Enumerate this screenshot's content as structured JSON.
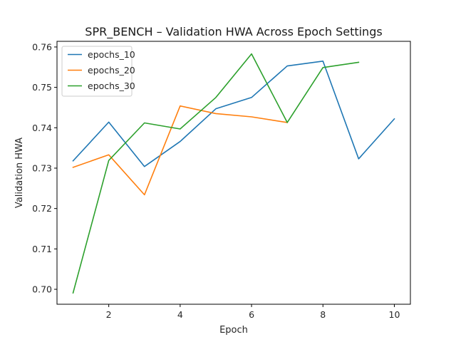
{
  "chart_data": {
    "type": "line",
    "title": "SPR_BENCH – Validation HWA Across Epoch Settings",
    "xlabel": "Epoch",
    "ylabel": "Validation HWA",
    "xlim": [
      0.55,
      10.45
    ],
    "ylim": [
      0.6963,
      0.7614
    ],
    "xticks": [
      2,
      4,
      6,
      8,
      10
    ],
    "yticks": [
      0.7,
      0.71,
      0.72,
      0.73,
      0.74,
      0.75,
      0.76
    ],
    "ytick_labels": [
      "0.70",
      "0.71",
      "0.72",
      "0.73",
      "0.74",
      "0.75",
      "0.76"
    ],
    "grid": false,
    "legend_position": "top-left",
    "series": [
      {
        "name": "epochs_10",
        "color": "#1f77b4",
        "x": [
          1,
          2,
          3,
          4,
          5,
          6,
          7,
          8,
          9,
          10
        ],
        "y": [
          0.7318,
          0.7414,
          0.7304,
          0.7366,
          0.7447,
          0.7475,
          0.7553,
          0.7565,
          0.7323,
          0.7422
        ]
      },
      {
        "name": "epochs_20",
        "color": "#ff7f0e",
        "x": [
          1,
          2,
          3,
          4,
          5,
          6,
          7
        ],
        "y": [
          0.7302,
          0.7333,
          0.7234,
          0.7454,
          0.7435,
          0.7427,
          0.7413
        ]
      },
      {
        "name": "epochs_30",
        "color": "#2ca02c",
        "x": [
          1,
          2,
          3,
          4,
          5,
          6,
          7,
          8,
          9
        ],
        "y": [
          0.6991,
          0.7319,
          0.7412,
          0.7397,
          0.7475,
          0.7583,
          0.7413,
          0.7549,
          0.7562
        ]
      }
    ]
  }
}
